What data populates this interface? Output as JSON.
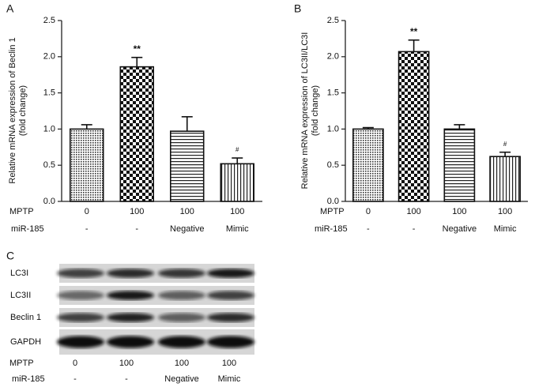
{
  "chart_data": [
    {
      "type": "bar",
      "panel": "A",
      "ylabel": [
        "Relative mRNA expression of Beclin 1",
        "(fold change)"
      ],
      "row_labels": [
        "MPTP",
        "miR-185"
      ],
      "categories": [
        [
          "0",
          "-"
        ],
        [
          "100",
          "-"
        ],
        [
          "100",
          "Negative"
        ],
        [
          "100",
          "Mimic"
        ]
      ],
      "values": [
        1.0,
        1.86,
        0.97,
        0.52
      ],
      "errors": [
        0.06,
        0.13,
        0.2,
        0.08
      ],
      "annotations": [
        null,
        "**",
        null,
        "#"
      ],
      "patterns": [
        "crosshatch",
        "checker",
        "horizontal",
        "vertical"
      ],
      "ylim": [
        0,
        2.5
      ],
      "yticks": [
        {
          "value": 0,
          "label": "0.0"
        },
        0.5,
        {
          "value": 1,
          "label": "1.0"
        },
        1.5,
        {
          "value": 2,
          "label": "2.0"
        },
        2.5
      ]
    },
    {
      "type": "bar",
      "panel": "B",
      "ylabel": [
        "Relative mRNA expression of LC3II/LC3I",
        "(fold change)"
      ],
      "row_labels": [
        "MPTP",
        "miR-185"
      ],
      "categories": [
        [
          "0",
          "-"
        ],
        [
          "100",
          "-"
        ],
        [
          "100",
          "Negative"
        ],
        [
          "100",
          "Mimic"
        ]
      ],
      "values": [
        1.0,
        2.07,
        1.0,
        0.62
      ],
      "errors": [
        0.02,
        0.16,
        0.06,
        0.06
      ],
      "annotations": [
        null,
        "**",
        null,
        "#"
      ],
      "patterns": [
        "crosshatch",
        "checker",
        "horizontal",
        "vertical"
      ],
      "ylim": [
        0,
        2.5
      ],
      "yticks": [
        {
          "value": 0,
          "label": "0.0"
        },
        0.5,
        {
          "value": 1,
          "label": "1.0"
        },
        1.5,
        {
          "value": 2,
          "label": "2.0"
        },
        2.5
      ]
    }
  ],
  "blot": {
    "panel": "C",
    "bands": [
      "LC3I",
      "LC3II",
      "Beclin 1",
      "GAPDH"
    ],
    "row_labels": [
      "MPTP",
      "miR-185"
    ],
    "lanes": [
      [
        "0",
        "-"
      ],
      [
        "100",
        "-"
      ],
      [
        "100",
        "Negative"
      ],
      [
        "100",
        "Mimic"
      ]
    ]
  }
}
